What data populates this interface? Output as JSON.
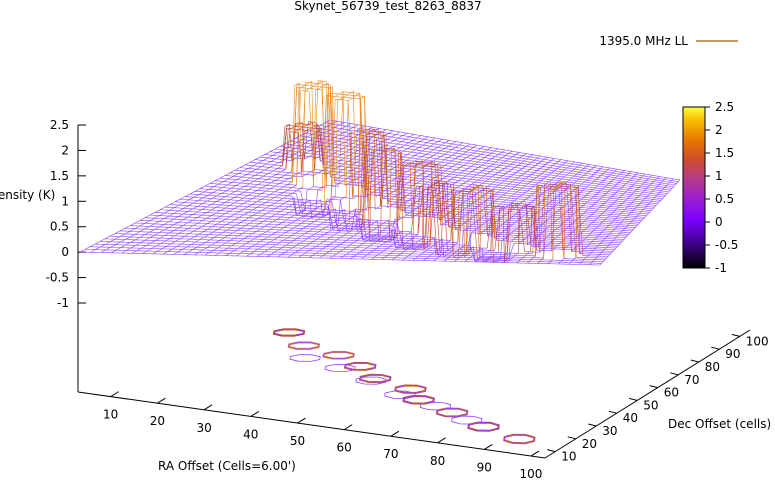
{
  "chart_data": {
    "type": "surface3d",
    "title": "Skynet_56739_test_8263_8837",
    "legend": {
      "label": "1395.0 MHz LL",
      "color": "#b07a30",
      "position": "top-right"
    },
    "zlabel": "Intensity (K)",
    "xlabel": "RA Offset (Cells=6.00')",
    "ylabel": "Dec Offset (cells)",
    "zlim": [
      -1.5,
      2.5
    ],
    "z_ticks": [
      "2.5",
      "2",
      "1.5",
      "1",
      "0.5",
      "0",
      "-0.5",
      "-1"
    ],
    "z_tick_values": [
      2.5,
      2,
      1.5,
      1,
      0.5,
      0,
      -0.5,
      -1
    ],
    "x_ticks": [
      "10",
      "20",
      "30",
      "40",
      "50",
      "60",
      "70",
      "80",
      "90",
      "100"
    ],
    "x_tick_values": [
      10,
      20,
      30,
      40,
      50,
      60,
      70,
      80,
      90,
      100
    ],
    "y_ticks": [
      "10",
      "20",
      "30",
      "40",
      "50",
      "60",
      "70",
      "80",
      "90",
      "100"
    ],
    "y_tick_values": [
      10,
      20,
      30,
      40,
      50,
      60,
      70,
      80,
      90,
      100
    ],
    "colorbar": {
      "ticks": [
        "2.5",
        "2",
        "1.5",
        "1",
        "0.5",
        "0",
        "-0.5",
        "-1"
      ],
      "range": [
        -1,
        2.5
      ],
      "colors": [
        "#000000",
        "#3a0080",
        "#7a00ff",
        "#9b1fd0",
        "#b43a8a",
        "#cf4f2a",
        "#e87a00",
        "#f7c000",
        "#ffff40"
      ]
    },
    "peaks": [
      {
        "x": 12,
        "y": 70,
        "z": 1.0
      },
      {
        "x": 20,
        "y": 60,
        "z": 2.5
      },
      {
        "x": 30,
        "y": 55,
        "z": 2.5
      },
      {
        "x": 38,
        "y": 48,
        "z": 1.8
      },
      {
        "x": 45,
        "y": 40,
        "z": 1.6
      },
      {
        "x": 55,
        "y": 35,
        "z": 1.5
      },
      {
        "x": 60,
        "y": 28,
        "z": 1.2
      },
      {
        "x": 70,
        "y": 22,
        "z": 1.3
      },
      {
        "x": 80,
        "y": 15,
        "z": 1.1
      },
      {
        "x": 90,
        "y": 10,
        "z": 1.8
      }
    ],
    "dips": [
      {
        "x": 25,
        "y": 50,
        "z": -0.5
      },
      {
        "x": 35,
        "y": 45,
        "z": -0.6
      },
      {
        "x": 45,
        "y": 38,
        "z": -0.6
      },
      {
        "x": 55,
        "y": 30,
        "z": -0.5
      },
      {
        "x": 65,
        "y": 25,
        "z": -0.5
      },
      {
        "x": 75,
        "y": 18,
        "z": -0.4
      }
    ]
  }
}
